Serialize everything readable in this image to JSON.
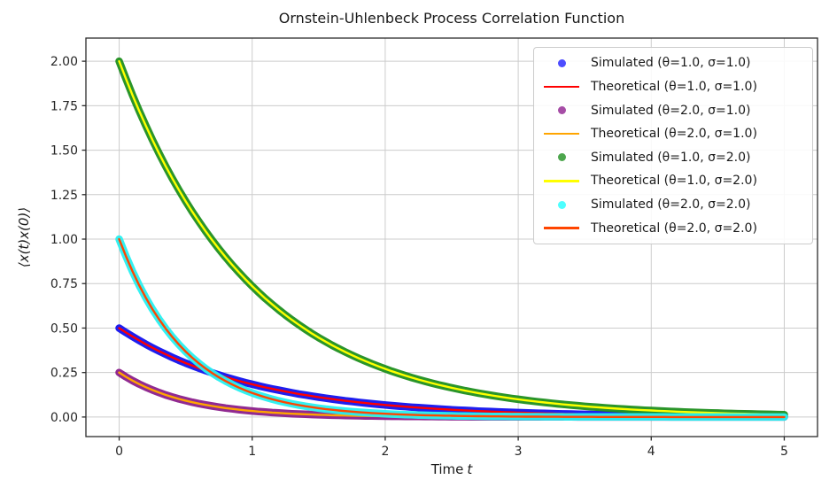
{
  "figure": {
    "xlabel_text": "Time",
    "xlabel_var": "t"
  },
  "chart_data": {
    "type": "line",
    "title": "Ornstein-Uhlenbeck Process Correlation Function",
    "xlabel": "Time t",
    "ylabel": "⟨x(t)x(0)⟩",
    "xlim": [
      -0.25,
      5.25
    ],
    "ylim": [
      -0.11,
      2.13
    ],
    "xticks": [
      0,
      1,
      2,
      3,
      4,
      5
    ],
    "xtick_labels": [
      "0",
      "1",
      "2",
      "3",
      "4",
      "5"
    ],
    "yticks": [
      0.0,
      0.25,
      0.5,
      0.75,
      1.0,
      1.25,
      1.5,
      1.75,
      2.0
    ],
    "ytick_labels": [
      "0.00",
      "0.25",
      "0.50",
      "0.75",
      "1.00",
      "1.25",
      "1.50",
      "1.75",
      "2.00"
    ],
    "grid": true,
    "grid_color": "#cccccc",
    "spine_color": "#2b2b2b",
    "legend_position": "upper right",
    "t_samples": [
      0,
      0.25,
      0.5,
      0.75,
      1.0,
      1.25,
      1.5,
      1.75,
      2.0,
      2.25,
      2.5,
      2.75,
      3.0,
      3.25,
      3.5,
      3.75,
      4.0,
      4.25,
      4.5,
      4.75,
      5.0
    ],
    "series": [
      {
        "sim_label": "Simulated (θ=1.0, σ=1.0)",
        "theory_label": "Theoretical (θ=1.0, σ=1.0)",
        "theta": 1.0,
        "sigma": 1.0,
        "amplitude": 0.5,
        "sim_color": "#1212ee",
        "theory_color": "#ff0000",
        "values": [
          0.5,
          0.3894,
          0.3033,
          0.2362,
          0.1839,
          0.1433,
          0.1116,
          0.0869,
          0.0677,
          0.0527,
          0.041,
          0.032,
          0.0249,
          0.0194,
          0.0151,
          0.0117,
          0.0092,
          0.0071,
          0.0056,
          0.0043,
          0.0034
        ]
      },
      {
        "sim_label": "Simulated (θ=2.0, σ=1.0)",
        "theory_label": "Theoretical (θ=2.0, σ=1.0)",
        "theta": 2.0,
        "sigma": 1.0,
        "amplitude": 0.25,
        "sim_color": "#8b1f8b",
        "theory_color": "#ffa500",
        "values": [
          0.25,
          0.1516,
          0.092,
          0.0558,
          0.0338,
          0.0205,
          0.0125,
          0.0076,
          0.0046,
          0.0028,
          0.0017,
          0.001,
          0.0006,
          0.0004,
          0.0002,
          0.0001,
          0.0001,
          0.0,
          0.0,
          0.0,
          0.0
        ]
      },
      {
        "sim_label": "Simulated (θ=1.0, σ=2.0)",
        "theory_label": "Theoretical (θ=1.0, σ=2.0)",
        "theta": 1.0,
        "sigma": 2.0,
        "amplitude": 2.0,
        "sim_color": "#1f8f1f",
        "theory_color": "#ffff00",
        "values": [
          2.0,
          1.5576,
          1.2131,
          0.9447,
          0.7358,
          0.573,
          0.4463,
          0.3476,
          0.2707,
          0.2108,
          0.1642,
          0.1279,
          0.0996,
          0.0776,
          0.0604,
          0.047,
          0.0366,
          0.0285,
          0.0222,
          0.0173,
          0.0135
        ]
      },
      {
        "sim_label": "Simulated (θ=2.0, σ=2.0)",
        "theory_label": "Theoretical (θ=2.0, σ=2.0)",
        "theta": 2.0,
        "sigma": 2.0,
        "amplitude": 1.0,
        "sim_color": "#29f0f0",
        "theory_color": "#ff4500",
        "values": [
          1.0,
          0.6065,
          0.3679,
          0.2231,
          0.1353,
          0.0821,
          0.0498,
          0.0302,
          0.0183,
          0.0111,
          0.0067,
          0.0041,
          0.0025,
          0.0015,
          0.0009,
          0.0006,
          0.0003,
          0.0002,
          0.0001,
          0.0001,
          0.0
        ]
      }
    ]
  },
  "legend": {
    "entries": [
      {
        "label": "Simulated (θ=1.0, σ=1.0)",
        "marker": "dot",
        "color": "#4d4dff"
      },
      {
        "label": "Theoretical (θ=1.0, σ=1.0)",
        "marker": "line",
        "color": "#ff0000"
      },
      {
        "label": "Simulated (θ=2.0, σ=1.0)",
        "marker": "dot",
        "color": "#a64da6"
      },
      {
        "label": "Theoretical (θ=2.0, σ=1.0)",
        "marker": "line",
        "color": "#ffa500"
      },
      {
        "label": "Simulated (θ=1.0, σ=2.0)",
        "marker": "dot",
        "color": "#4da64d"
      },
      {
        "label": "Theoretical (θ=1.0, σ=2.0)",
        "marker": "line",
        "color": "#ffff00"
      },
      {
        "label": "Simulated (θ=2.0, σ=2.0)",
        "marker": "dot",
        "color": "#4dffff"
      },
      {
        "label": "Theoretical (θ=2.0, σ=2.0)",
        "marker": "line",
        "color": "#ff4500"
      }
    ]
  }
}
